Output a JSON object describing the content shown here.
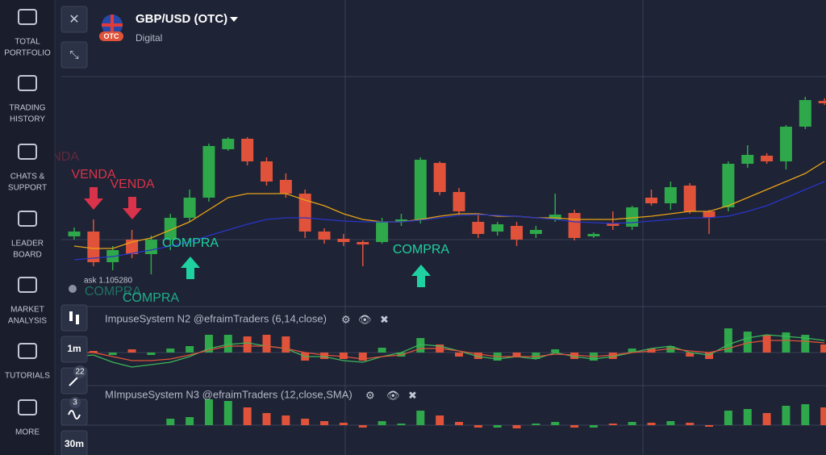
{
  "sidebar": [
    {
      "lines": [
        "TOTAL",
        "PORTFOLIO"
      ]
    },
    {
      "lines": [
        "TRADING",
        "HISTORY"
      ]
    },
    {
      "lines": [
        "CHATS &",
        "SUPPORT"
      ]
    },
    {
      "lines": [
        "LEADER",
        "BOARD"
      ]
    },
    {
      "lines": [
        "MARKET",
        "ANALYSIS"
      ]
    },
    {
      "lines": [
        "TUTORIALS"
      ]
    },
    {
      "lines": [
        "MORE"
      ]
    }
  ],
  "header": {
    "asset": "GBP/USD (OTC)",
    "badge": "OTC",
    "subtitle": "Digital"
  },
  "toolbar": {
    "timeframe": "1m",
    "drawings": 22,
    "indicators_count": 3,
    "chart_interval": "30m"
  },
  "chart_data": {
    "type": "candlestick",
    "ylim": [
      0,
      285
    ],
    "up_color": "#2ea84a",
    "down_color": "#e0533a",
    "open": [
      87,
      93,
      55,
      83,
      65,
      83,
      110,
      135,
      195,
      208,
      180,
      157,
      140,
      93,
      84,
      80,
      80,
      105,
      108,
      178,
      142,
      105,
      93,
      100,
      90,
      108,
      116,
      87,
      103,
      99,
      135,
      128,
      150,
      118,
      123,
      177,
      187,
      180,
      223,
      255
    ],
    "close": [
      93,
      55,
      70,
      65,
      83,
      110,
      135,
      199,
      208,
      180,
      155,
      140,
      93,
      83,
      80,
      77,
      105,
      108,
      182,
      142,
      118,
      90,
      102,
      83,
      95,
      114,
      85,
      90,
      100,
      123,
      128,
      148,
      118,
      110,
      177,
      188,
      180,
      223,
      256,
      252
    ],
    "high": [
      98,
      108,
      75,
      95,
      88,
      115,
      145,
      202,
      210,
      210,
      185,
      165,
      145,
      97,
      90,
      82,
      110,
      115,
      185,
      180,
      147,
      115,
      105,
      105,
      100,
      140,
      120,
      92,
      118,
      125,
      145,
      155,
      153,
      120,
      180,
      200,
      190,
      225,
      260,
      258
    ],
    "low": [
      83,
      50,
      45,
      60,
      40,
      70,
      105,
      130,
      193,
      175,
      150,
      135,
      85,
      78,
      75,
      50,
      78,
      100,
      103,
      138,
      113,
      85,
      88,
      75,
      85,
      105,
      82,
      85,
      95,
      95,
      125,
      120,
      115,
      90,
      118,
      172,
      177,
      170,
      220,
      250
    ],
    "ma_lines": [
      {
        "color": "#e8a317",
        "values": [
          75,
          72,
          72,
          80,
          85,
          95,
          105,
          120,
          135,
          140,
          140,
          140,
          132,
          125,
          115,
          108,
          105,
          105,
          108,
          112,
          115,
          115,
          112,
          112,
          110,
          110,
          108,
          108,
          108,
          110,
          112,
          115,
          118,
          118,
          125,
          135,
          145,
          155,
          165,
          180
        ]
      },
      {
        "color": "#2a35c8",
        "values": [
          58,
          60,
          62,
          66,
          70,
          75,
          80,
          88,
          95,
          102,
          108,
          110,
          110,
          108,
          106,
          105,
          105,
          105,
          107,
          110,
          113,
          114,
          113,
          112,
          110,
          108,
          105,
          104,
          103,
          104,
          106,
          108,
          110,
          110,
          112,
          118,
          125,
          135,
          145,
          155
        ]
      }
    ],
    "ask_label": "ask 1.105280",
    "signals": [
      {
        "label": "VENDA"
      },
      {
        "label": "VENDA"
      },
      {
        "label": "VENDA"
      },
      {
        "label": "COMPRA"
      },
      {
        "label": "COMPRA"
      },
      {
        "label": "COMPRA"
      },
      {
        "label": "COMPRA"
      }
    ]
  },
  "indicators": [
    {
      "title": "ImpuseSystem N2 @efraimTraders (6,14,close)",
      "ylim": [
        -35,
        35
      ],
      "values": [
        0,
        2,
        -3,
        4,
        -3,
        5,
        8,
        22,
        22,
        20,
        22,
        20,
        -10,
        -8,
        -8,
        -10,
        6,
        -5,
        18,
        10,
        -5,
        -8,
        -10,
        -6,
        -8,
        4,
        -8,
        -10,
        -8,
        5,
        5,
        8,
        -5,
        -8,
        30,
        26,
        22,
        25,
        22,
        10
      ],
      "lines": [
        {
          "color": "#3cb75a",
          "values": [
            -5,
            -3,
            -12,
            -18,
            -15,
            -12,
            -5,
            5,
            10,
            12,
            8,
            5,
            -5,
            -5,
            -10,
            -12,
            -5,
            0,
            10,
            8,
            2,
            -5,
            -8,
            -5,
            -8,
            0,
            -5,
            -8,
            -5,
            0,
            5,
            8,
            0,
            -3,
            10,
            18,
            22,
            20,
            18,
            15
          ]
        },
        {
          "color": "#e0533a",
          "values": [
            0,
            0,
            -5,
            -10,
            -10,
            -8,
            -3,
            3,
            8,
            8,
            8,
            5,
            0,
            -3,
            -5,
            -8,
            -5,
            -3,
            5,
            5,
            2,
            -2,
            -5,
            -5,
            -5,
            -2,
            -3,
            -5,
            -3,
            0,
            2,
            5,
            2,
            0,
            5,
            12,
            15,
            15,
            14,
            12
          ]
        }
      ]
    },
    {
      "title": "MImpuseSystem N3 @efraimTraders  (12,close,SMA)",
      "ylim": [
        -10,
        50
      ],
      "values": [
        0,
        0,
        0,
        0,
        0,
        8,
        10,
        32,
        30,
        22,
        15,
        12,
        8,
        5,
        3,
        -3,
        5,
        2,
        18,
        12,
        4,
        -3,
        -3,
        -4,
        2,
        4,
        -3,
        -3,
        2,
        4,
        3,
        5,
        3,
        -2,
        18,
        20,
        15,
        24,
        26,
        22
      ]
    }
  ]
}
